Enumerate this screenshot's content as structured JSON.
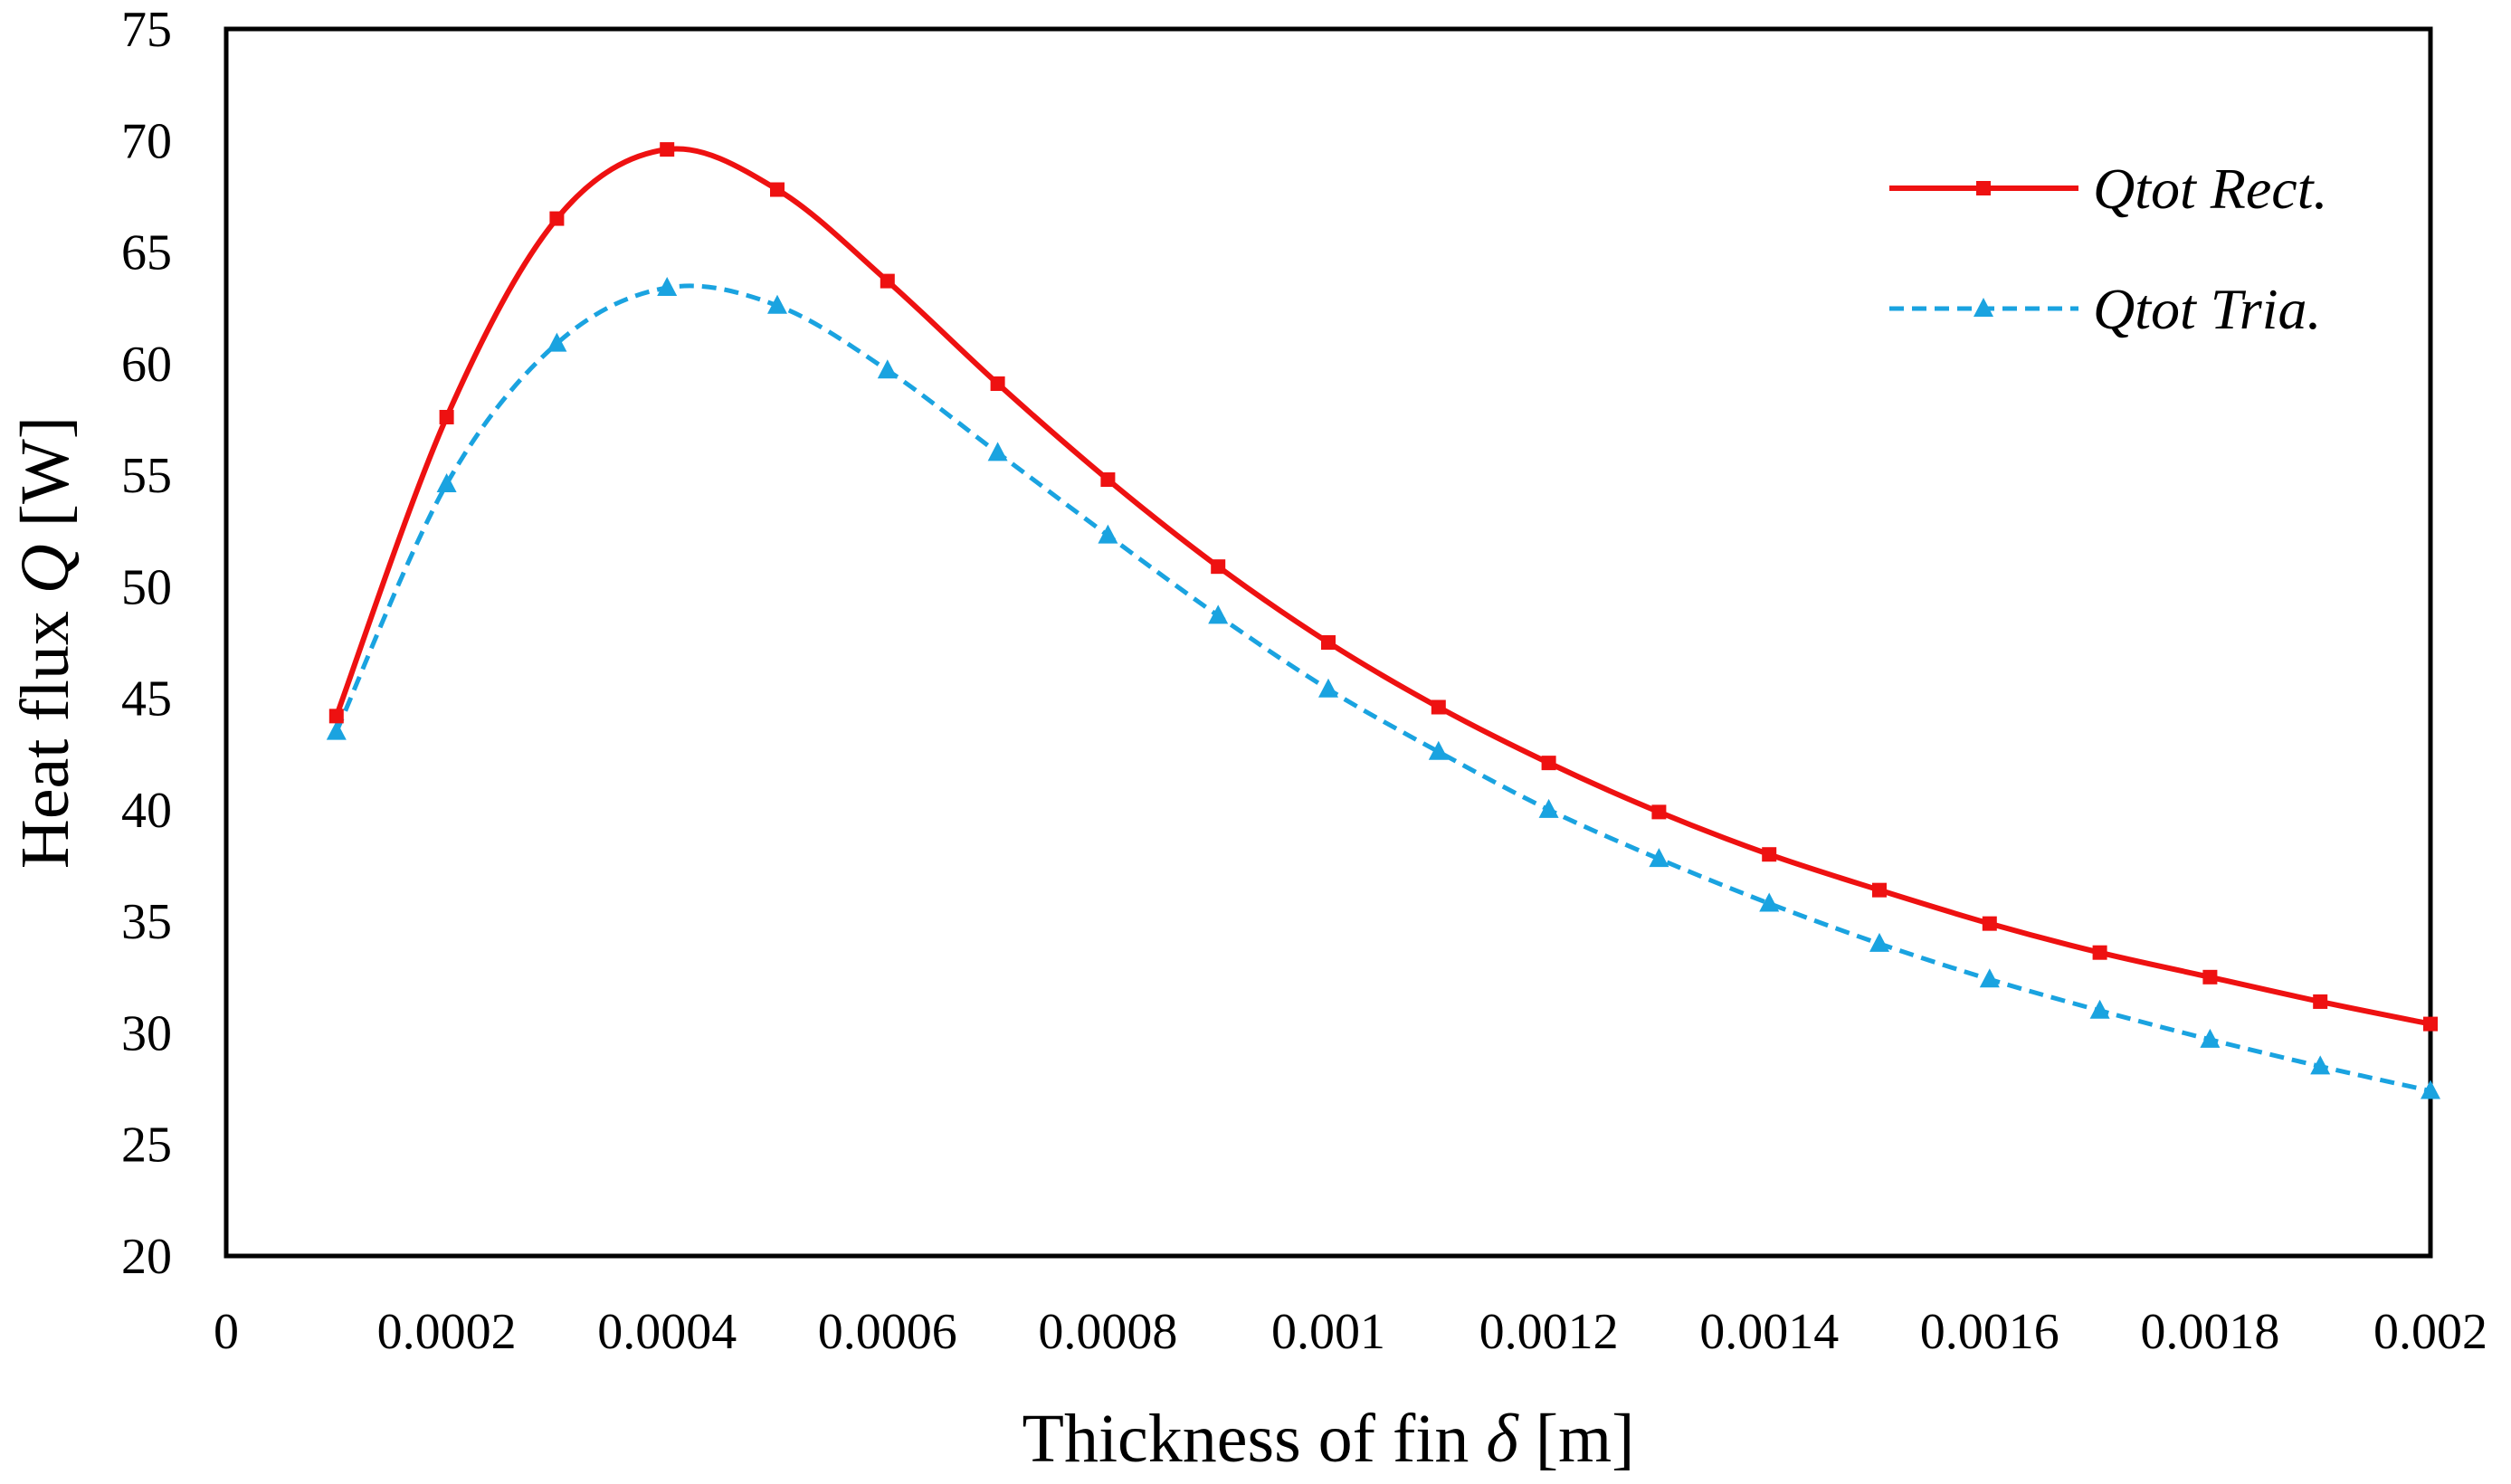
{
  "chart_data": {
    "type": "line",
    "title": "",
    "xlabel": "Thickness of fin",
    "xlabel_symbol": "δ",
    "xlabel_unit": "[m]",
    "ylabel": "Heat flux",
    "ylabel_symbol": "Q",
    "ylabel_unit": "[W]",
    "xlim": [
      0,
      0.002
    ],
    "ylim": [
      20,
      75
    ],
    "grid": false,
    "legend_position": "top-right",
    "x_ticks": [
      0,
      0.0002,
      0.0004,
      0.0006,
      0.0008,
      0.001,
      0.0012,
      0.0014,
      0.0016,
      0.0018,
      0.002
    ],
    "x_tick_labels": [
      "0",
      "0.0002",
      "0.0004",
      "0.0006",
      "0.0008",
      "0.001",
      "0.0012",
      "0.0014",
      "0.0016",
      "0.0018",
      "0.002"
    ],
    "y_ticks": [
      20,
      25,
      30,
      35,
      40,
      45,
      50,
      55,
      60,
      65,
      70,
      75
    ],
    "y_tick_labels": [
      "20",
      "25",
      "30",
      "35",
      "40",
      "45",
      "50",
      "55",
      "60",
      "65",
      "70",
      "75"
    ],
    "x": [
      0.0001,
      0.0002,
      0.0003,
      0.0004,
      0.0005,
      0.0006,
      0.0007,
      0.0008,
      0.0009,
      0.001,
      0.0011,
      0.0012,
      0.0013,
      0.0014,
      0.0015,
      0.0016,
      0.0017,
      0.0018,
      0.0019,
      0.002
    ],
    "series": [
      {
        "name": "Qtot Rect.",
        "color": "#ee1111",
        "dash": "solid",
        "marker": "square",
        "values": [
          44.2,
          57.6,
          66.5,
          69.6,
          67.8,
          63.7,
          59.1,
          54.8,
          50.9,
          47.5,
          44.6,
          42.1,
          39.9,
          38.0,
          36.4,
          34.9,
          33.6,
          32.5,
          31.4,
          30.4
        ]
      },
      {
        "name": "Qtot Tria.",
        "color": "#1aa3e0",
        "dash": "dashed",
        "marker": "triangle",
        "values": [
          43.5,
          54.6,
          60.9,
          63.4,
          62.6,
          59.7,
          56.0,
          52.3,
          48.7,
          45.4,
          42.6,
          40.0,
          37.8,
          35.8,
          34.0,
          32.4,
          31.0,
          29.7,
          28.5,
          27.4
        ]
      }
    ]
  }
}
